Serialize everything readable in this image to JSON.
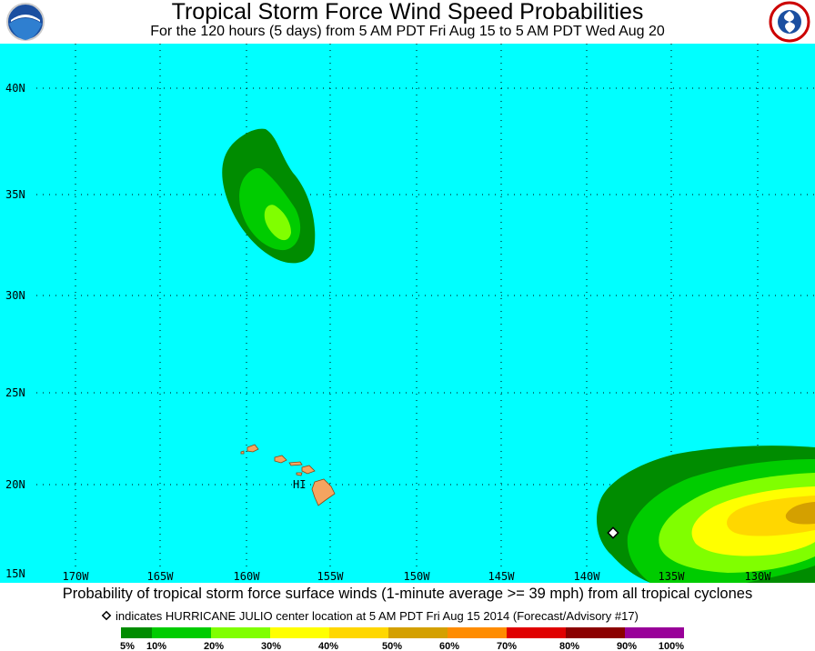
{
  "header": {
    "title": "Tropical Storm Force Wind Speed Probabilities",
    "subtitle": "For the 120 hours (5 days) from 5 AM PDT Fri Aug 15 to 5 AM PDT Wed Aug 20"
  },
  "map": {
    "lat_labels": [
      "40N",
      "35N",
      "30N",
      "25N",
      "20N",
      "15N"
    ],
    "lon_labels": [
      "170W",
      "165W",
      "160W",
      "155W",
      "150W",
      "145W",
      "140W",
      "135W",
      "130W"
    ],
    "island_label": "HI"
  },
  "footer": {
    "caption": "Probability of tropical storm force surface winds (1-minute average >= 39 mph) from all tropical cyclones",
    "note": "indicates HURRICANE JULIO center location at 5 AM PDT Fri Aug 15 2014 (Forecast/Advisory #17)",
    "scale_labels": [
      "5%",
      "10%",
      "20%",
      "30%",
      "40%",
      "50%",
      "60%",
      "70%",
      "80%",
      "90%",
      "100%"
    ]
  }
}
